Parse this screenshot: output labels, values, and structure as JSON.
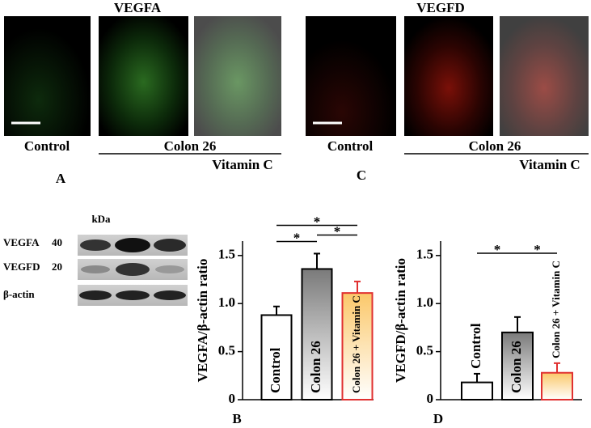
{
  "panels": [
    {
      "title": "VEGFA",
      "control": "Control",
      "colon": "Colon 26",
      "vitc": "Vitamin C",
      "letter": "A"
    },
    {
      "title": "VEGFD",
      "control": "Control",
      "colon": "Colon 26",
      "vitc": "Vitamin C",
      "letter": "C"
    }
  ],
  "blot": {
    "unit": "kDa",
    "rows": [
      {
        "name": "VEGFA",
        "kda": 40
      },
      {
        "name": "VEGFD",
        "kda": 20
      },
      {
        "name": "β-actin"
      }
    ]
  },
  "chart_data": [
    {
      "type": "bar",
      "letter": "B",
      "ylabel": "VEGFA/β-actin ratio",
      "categories": [
        "Control",
        "Colon 26",
        "Colon 26 + Vitamin C"
      ],
      "values": [
        0.88,
        1.36,
        1.11
      ],
      "errors": [
        0.09,
        0.16,
        0.12
      ],
      "colors": [
        "#ffffff",
        "#7a7a7a",
        "#fbc86a"
      ],
      "edge_colors": [
        "#000000",
        "#000000",
        "#e03030"
      ],
      "ylim": [
        0,
        1.65
      ],
      "yticks": [
        0,
        0.5,
        {
          "value": 1,
          "label": "1.0"
        },
        1.5
      ],
      "significance": [
        {
          "pair": [
            0,
            1
          ],
          "label": "*"
        },
        {
          "pair": [
            1,
            2
          ],
          "label": "*"
        },
        {
          "pair": [
            0,
            2
          ],
          "label": "*"
        }
      ]
    },
    {
      "type": "bar",
      "letter": "D",
      "ylabel": "VEGFD/β-actin ratio",
      "categories": [
        "Control",
        "Colon 26",
        "Colon 26 + Vitamin C"
      ],
      "values": [
        0.18,
        0.7,
        0.28
      ],
      "errors": [
        0.09,
        0.16,
        0.1
      ],
      "colors": [
        "#ffffff",
        "#7a7a7a",
        "#fbc86a"
      ],
      "edge_colors": [
        "#000000",
        "#000000",
        "#e03030"
      ],
      "ylim": [
        0,
        1.65
      ],
      "yticks": [
        0,
        0.5,
        {
          "value": 1,
          "label": "1.0"
        },
        1.5
      ],
      "significance": [
        {
          "pair": [
            0,
            1
          ],
          "label": "*"
        },
        {
          "pair": [
            1,
            2
          ],
          "label": "*"
        }
      ]
    }
  ]
}
